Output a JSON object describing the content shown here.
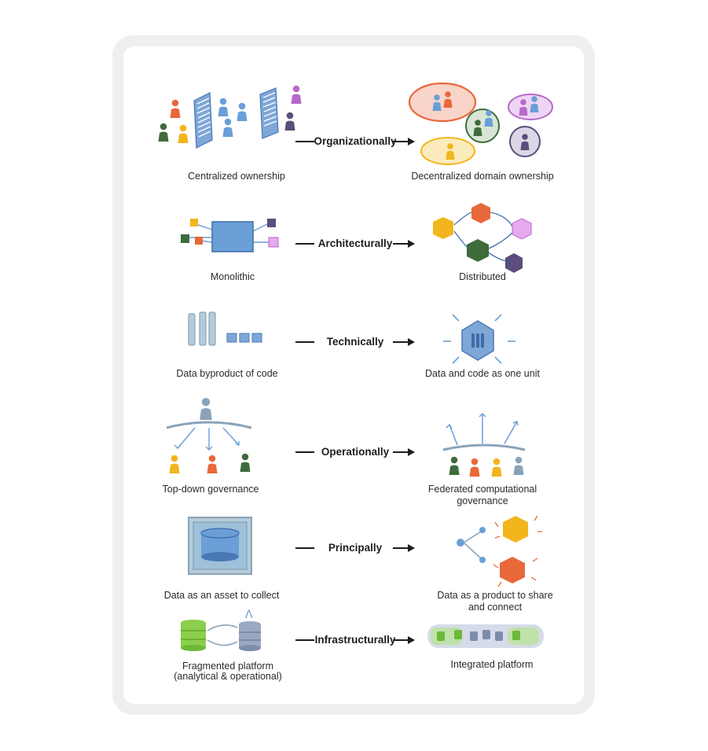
{
  "rows": [
    {
      "left_label": "Centralized ownership",
      "connector": "Organizationally",
      "right_label": "Decentralized domain ownership"
    },
    {
      "left_label": "Monolithic",
      "connector": "Architecturally",
      "right_label": "Distributed"
    },
    {
      "left_label": "Data byproduct of code",
      "connector": "Technically",
      "right_label": "Data and code as one unit"
    },
    {
      "left_label": "Top-down governance",
      "connector": "Operationally",
      "right_label": "Federated computational governance"
    },
    {
      "left_label": "Data as an asset to collect",
      "connector": "Principally",
      "right_label": "Data as a product to share and connect"
    },
    {
      "left_label": "Fragmented platform (analytical & operational)",
      "connector": "Infrastructurally",
      "right_label": "Integrated platform"
    }
  ],
  "colors": {
    "orange": "#e8683a",
    "yellow": "#f2b51c",
    "green": "#3f6b3c",
    "purple": "#b768c9",
    "dark_purple": "#5b4d7c",
    "blue": "#6a9fd8",
    "gray_blue": "#8aa3b8",
    "lime": "#8ccf4d"
  }
}
